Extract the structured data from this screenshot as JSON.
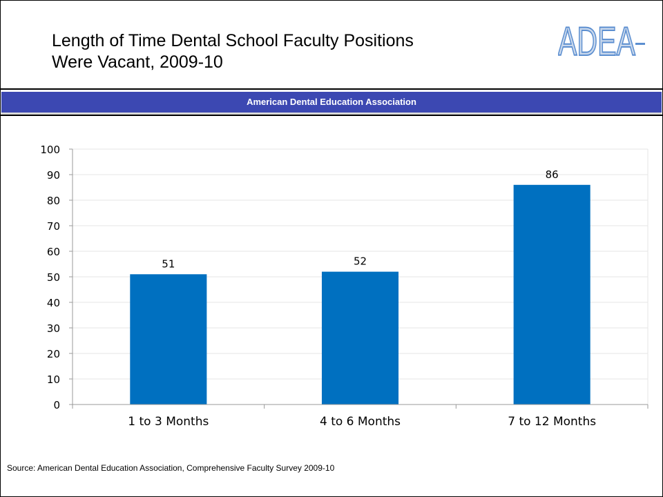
{
  "header": {
    "title_line1": "Length of Time Dental School Faculty Positions",
    "title_line2": "Were Vacant, 2009-10",
    "logo_text": "ADEA"
  },
  "banner": {
    "text": "American Dental Education Association",
    "color": "#3c48b2"
  },
  "footer": {
    "source": "Source: American Dental Education Association, Comprehensive Faculty Survey 2009-10"
  },
  "chart_data": {
    "type": "bar",
    "title": "Length of Time Dental School Faculty Positions Were Vacant, 2009-10",
    "categories": [
      "1 to 3 Months",
      "4 to 6 Months",
      "7 to 12 Months"
    ],
    "values": [
      51,
      52,
      86
    ],
    "data_labels": [
      "51",
      "52",
      "86"
    ],
    "ylim": [
      0,
      100
    ],
    "yticks": [
      0,
      10,
      20,
      30,
      40,
      50,
      60,
      70,
      80,
      90,
      100
    ],
    "xlabel": "",
    "ylabel": "",
    "grid": true,
    "legend": "none",
    "bar_color": "#0070c0",
    "grid_color": "#e6e6e6"
  }
}
